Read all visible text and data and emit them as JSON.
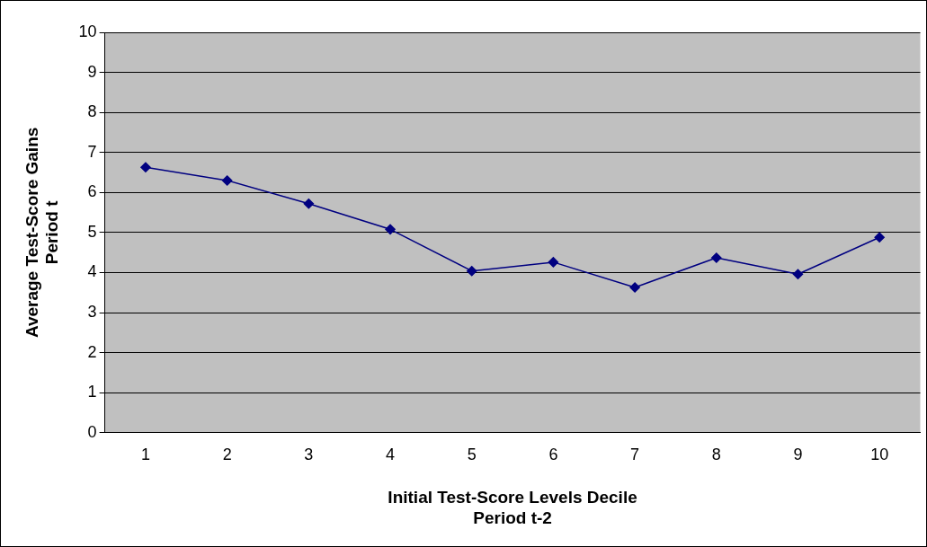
{
  "chart_data": {
    "type": "line",
    "xlabel": "Initial Test-Score Levels Decile\nPeriod t-2",
    "ylabel": "Average Test-Score Gains\nPeriod t",
    "categories": [
      "1",
      "2",
      "3",
      "4",
      "5",
      "6",
      "7",
      "8",
      "9",
      "10"
    ],
    "series": [
      {
        "color": "#000080",
        "values": [
          6.63,
          6.3,
          5.72,
          5.08,
          4.04,
          4.26,
          3.63,
          4.37,
          3.96,
          4.88
        ]
      }
    ],
    "ylim": [
      0,
      10
    ],
    "yticks": [
      0,
      1,
      2,
      3,
      4,
      5,
      6,
      7,
      8,
      9,
      10
    ],
    "grid": "y",
    "legend": false,
    "marker": "diamond",
    "line_style": "solid"
  }
}
